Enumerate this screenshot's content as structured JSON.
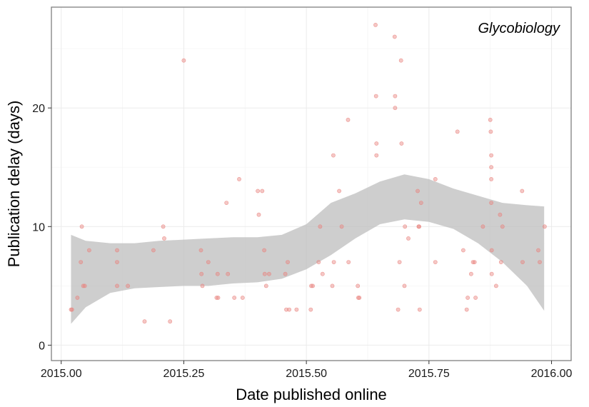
{
  "chart_data": {
    "type": "scatter",
    "title": "",
    "annotation": "Glycobiology",
    "xlabel": "Date published online",
    "ylabel": "Publication delay (days)",
    "xlim": [
      2014.98,
      2016.04
    ],
    "ylim": [
      -1.3,
      28.5
    ],
    "xticks": [
      2015.0,
      2015.25,
      2015.5,
      2015.75,
      2016.0
    ],
    "xtick_labels": [
      "2015.00",
      "2015.25",
      "2015.50",
      "2015.75",
      "2016.00"
    ],
    "yticks": [
      0,
      10,
      20
    ],
    "ytick_labels": [
      "0",
      "10",
      "20"
    ],
    "grid": true,
    "point_color": "#e8837e",
    "ribbon_color": "#bdbdbd",
    "points": [
      [
        2015.02,
        3
      ],
      [
        2015.022,
        3
      ],
      [
        2015.033,
        4
      ],
      [
        2015.04,
        7
      ],
      [
        2015.042,
        10
      ],
      [
        2015.045,
        5
      ],
      [
        2015.048,
        5
      ],
      [
        2015.057,
        8
      ],
      [
        2015.114,
        8
      ],
      [
        2015.114,
        7
      ],
      [
        2015.114,
        5
      ],
      [
        2015.136,
        5
      ],
      [
        2015.17,
        2
      ],
      [
        2015.188,
        8
      ],
      [
        2015.208,
        10
      ],
      [
        2015.21,
        9
      ],
      [
        2015.222,
        2
      ],
      [
        2015.25,
        24
      ],
      [
        2015.285,
        8
      ],
      [
        2015.286,
        6
      ],
      [
        2015.288,
        5
      ],
      [
        2015.3,
        7
      ],
      [
        2015.317,
        4
      ],
      [
        2015.319,
        6
      ],
      [
        2015.32,
        4
      ],
      [
        2015.337,
        12
      ],
      [
        2015.34,
        6
      ],
      [
        2015.353,
        4
      ],
      [
        2015.363,
        14
      ],
      [
        2015.37,
        4
      ],
      [
        2015.401,
        13
      ],
      [
        2015.403,
        11
      ],
      [
        2015.41,
        13
      ],
      [
        2015.414,
        8
      ],
      [
        2015.415,
        6
      ],
      [
        2015.418,
        5
      ],
      [
        2015.424,
        6
      ],
      [
        2015.457,
        6
      ],
      [
        2015.459,
        3
      ],
      [
        2015.462,
        7
      ],
      [
        2015.465,
        3
      ],
      [
        2015.48,
        3
      ],
      [
        2015.509,
        3
      ],
      [
        2015.51,
        5
      ],
      [
        2015.513,
        5
      ],
      [
        2015.525,
        7
      ],
      [
        2015.528,
        10
      ],
      [
        2015.533,
        6
      ],
      [
        2015.553,
        5
      ],
      [
        2015.555,
        16
      ],
      [
        2015.556,
        7
      ],
      [
        2015.567,
        13
      ],
      [
        2015.572,
        10
      ],
      [
        2015.585,
        19
      ],
      [
        2015.586,
        7
      ],
      [
        2015.605,
        5
      ],
      [
        2015.606,
        4
      ],
      [
        2015.608,
        4
      ],
      [
        2015.641,
        27
      ],
      [
        2015.642,
        21
      ],
      [
        2015.643,
        17
      ],
      [
        2015.643,
        16
      ],
      [
        2015.68,
        26
      ],
      [
        2015.681,
        21
      ],
      [
        2015.681,
        20
      ],
      [
        2015.687,
        3
      ],
      [
        2015.69,
        7
      ],
      [
        2015.693,
        24
      ],
      [
        2015.694,
        17
      ],
      [
        2015.7,
        5
      ],
      [
        2015.701,
        10
      ],
      [
        2015.708,
        9
      ],
      [
        2015.727,
        13
      ],
      [
        2015.729,
        10
      ],
      [
        2015.73,
        10
      ],
      [
        2015.731,
        3
      ],
      [
        2015.734,
        12
      ],
      [
        2015.763,
        14
      ],
      [
        2015.763,
        7
      ],
      [
        2015.808,
        18
      ],
      [
        2015.82,
        8
      ],
      [
        2015.827,
        3
      ],
      [
        2015.829,
        4
      ],
      [
        2015.836,
        6
      ],
      [
        2015.84,
        7
      ],
      [
        2015.843,
        7
      ],
      [
        2015.845,
        4
      ],
      [
        2015.875,
        19
      ],
      [
        2015.876,
        18
      ],
      [
        2015.877,
        16
      ],
      [
        2015.877,
        15
      ],
      [
        2015.877,
        14
      ],
      [
        2015.877,
        12
      ],
      [
        2015.878,
        8
      ],
      [
        2015.878,
        6
      ],
      [
        2015.887,
        5
      ],
      [
        2015.897,
        7
      ],
      [
        2015.9,
        10
      ],
      [
        2015.94,
        13
      ],
      [
        2015.941,
        7
      ],
      [
        2015.973,
        8
      ],
      [
        2015.976,
        7
      ],
      [
        2015.986,
        10
      ],
      [
        2015.895,
        11
      ],
      [
        2015.86,
        10
      ]
    ],
    "smooth": {
      "x": [
        2015.02,
        2015.05,
        2015.1,
        2015.15,
        2015.2,
        2015.25,
        2015.3,
        2015.35,
        2015.4,
        2015.45,
        2015.5,
        2015.55,
        2015.6,
        2015.65,
        2015.7,
        2015.75,
        2015.8,
        2015.85,
        2015.9,
        2015.95,
        2015.985
      ],
      "upper": [
        9.3,
        8.8,
        8.6,
        8.6,
        8.8,
        8.9,
        9.0,
        9.1,
        9.1,
        9.3,
        10.2,
        12.0,
        12.8,
        13.8,
        14.4,
        14.0,
        13.2,
        12.6,
        12.0,
        11.8,
        11.7
      ],
      "lower": [
        1.8,
        3.2,
        4.4,
        4.8,
        4.9,
        5.0,
        5.0,
        5.2,
        5.3,
        5.6,
        6.4,
        7.6,
        9.0,
        10.2,
        10.6,
        10.4,
        9.8,
        8.6,
        7.0,
        5.0,
        2.9
      ]
    }
  }
}
